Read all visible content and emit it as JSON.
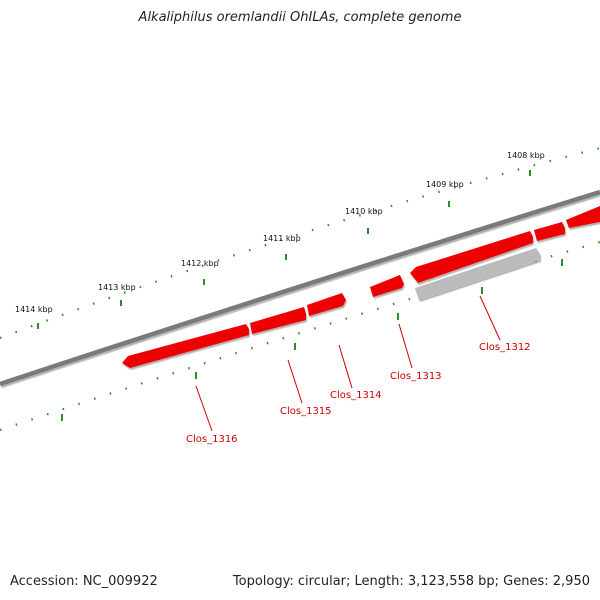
{
  "header": {
    "title": "Alkaliphilus oremlandii OhILAs, complete genome"
  },
  "footer": {
    "accession_text": "Accession: NC_009922",
    "stats_text": "Topology: circular; Length: 3,123,558 bp; Genes: 2,950"
  },
  "scale": {
    "ticks": [
      "1414 kbp",
      "1413 kbp",
      "1412 kbp",
      "1411 kbp",
      "1410 kbp",
      "1409 kbp",
      "1408 kbp"
    ]
  },
  "genes": {
    "labels": [
      "Clos_1312",
      "Clos_1313",
      "Clos_1314",
      "Clos_1315",
      "Clos_1316"
    ]
  },
  "colors": {
    "backbone": "#7a7a7a",
    "gene_red": "#ee0000",
    "gene_grey": "#bbbbbb",
    "tick_green": "#2e8b2e",
    "label_red": "#cc0000"
  }
}
